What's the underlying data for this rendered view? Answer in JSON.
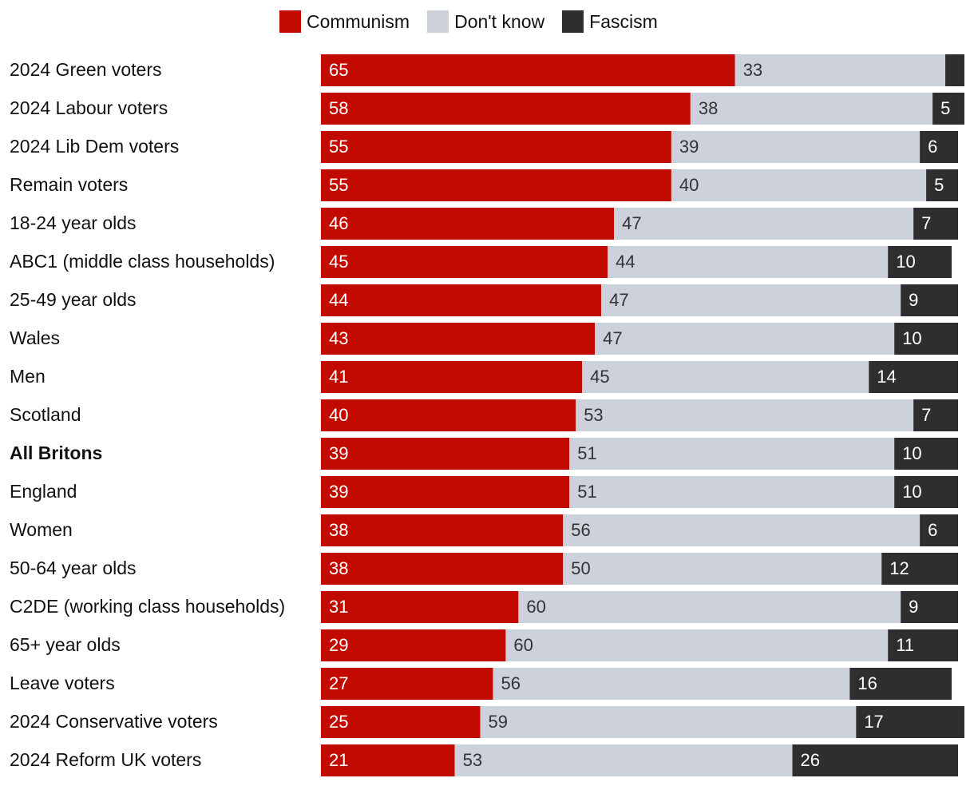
{
  "chart_data": {
    "type": "bar",
    "orientation": "horizontal",
    "stacked": true,
    "title": "",
    "xlabel": "",
    "ylabel": "",
    "xlim": [
      0,
      100
    ],
    "grid": false,
    "legend_position": "top",
    "categories": [
      "2024 Green voters",
      "2024 Labour voters",
      "2024 Lib Dem voters",
      "Remain voters",
      "18-24 year olds",
      "ABC1 (middle class households)",
      "25-49 year olds",
      "Wales",
      "Men",
      "Scotland",
      "All Britons",
      "England",
      "Women",
      "50-64 year olds",
      "C2DE (working class households)",
      "65+ year olds",
      "Leave voters",
      "2024 Conservative voters",
      "2024 Reform UK voters"
    ],
    "bold_categories": [
      "All Britons"
    ],
    "series": [
      {
        "name": "Communism",
        "color": "#c30a00",
        "label_color": "#ffffff",
        "values": [
          65,
          58,
          55,
          55,
          46,
          45,
          44,
          43,
          41,
          40,
          39,
          39,
          38,
          38,
          31,
          29,
          27,
          25,
          21
        ]
      },
      {
        "name": "Don't know",
        "color": "#ccd1dc",
        "label_color": "#333333",
        "values": [
          33,
          38,
          39,
          40,
          47,
          44,
          47,
          47,
          45,
          53,
          51,
          51,
          56,
          50,
          60,
          60,
          56,
          59,
          53
        ]
      },
      {
        "name": "Fascism",
        "color": "#2e2e2e",
        "label_color": "#ffffff",
        "values": [
          3,
          5,
          6,
          5,
          7,
          10,
          9,
          10,
          14,
          7,
          10,
          10,
          6,
          12,
          9,
          11,
          16,
          17,
          26
        ],
        "hidden_labels": [
          0
        ]
      }
    ]
  }
}
